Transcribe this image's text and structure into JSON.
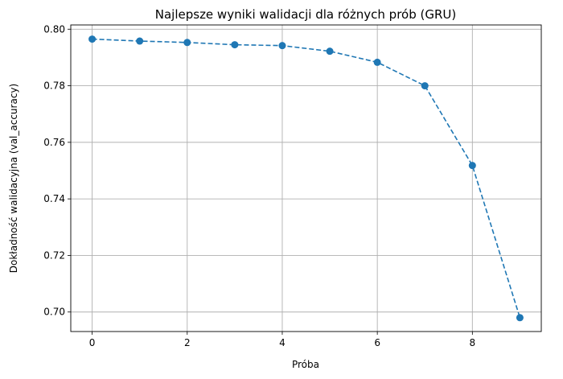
{
  "chart_data": {
    "type": "line",
    "title": "Najlepsze wyniki walidacji dla różnych prób (GRU)",
    "xlabel": "Próba",
    "ylabel": "Dokładność walidacyjna (val_accuracy)",
    "x": [
      0,
      1,
      2,
      3,
      4,
      5,
      6,
      7,
      8,
      9
    ],
    "y": [
      0.7965,
      0.7958,
      0.7953,
      0.7945,
      0.7942,
      0.7922,
      0.7883,
      0.78,
      0.7518,
      0.698
    ],
    "xlim": [
      -0.45,
      9.45
    ],
    "ylim": [
      0.6931,
      0.8015
    ],
    "xticks": [
      0,
      2,
      4,
      6,
      8
    ],
    "yticks": [
      0.7,
      0.72,
      0.74,
      0.76,
      0.78,
      0.8
    ],
    "xtick_labels": [
      "0",
      "2",
      "4",
      "6",
      "8"
    ],
    "ytick_labels": [
      "0.70",
      "0.72",
      "0.74",
      "0.76",
      "0.78",
      "0.80"
    ],
    "grid": true,
    "line_style": "dashed",
    "marker": "circle",
    "color": "#1f77b4"
  }
}
